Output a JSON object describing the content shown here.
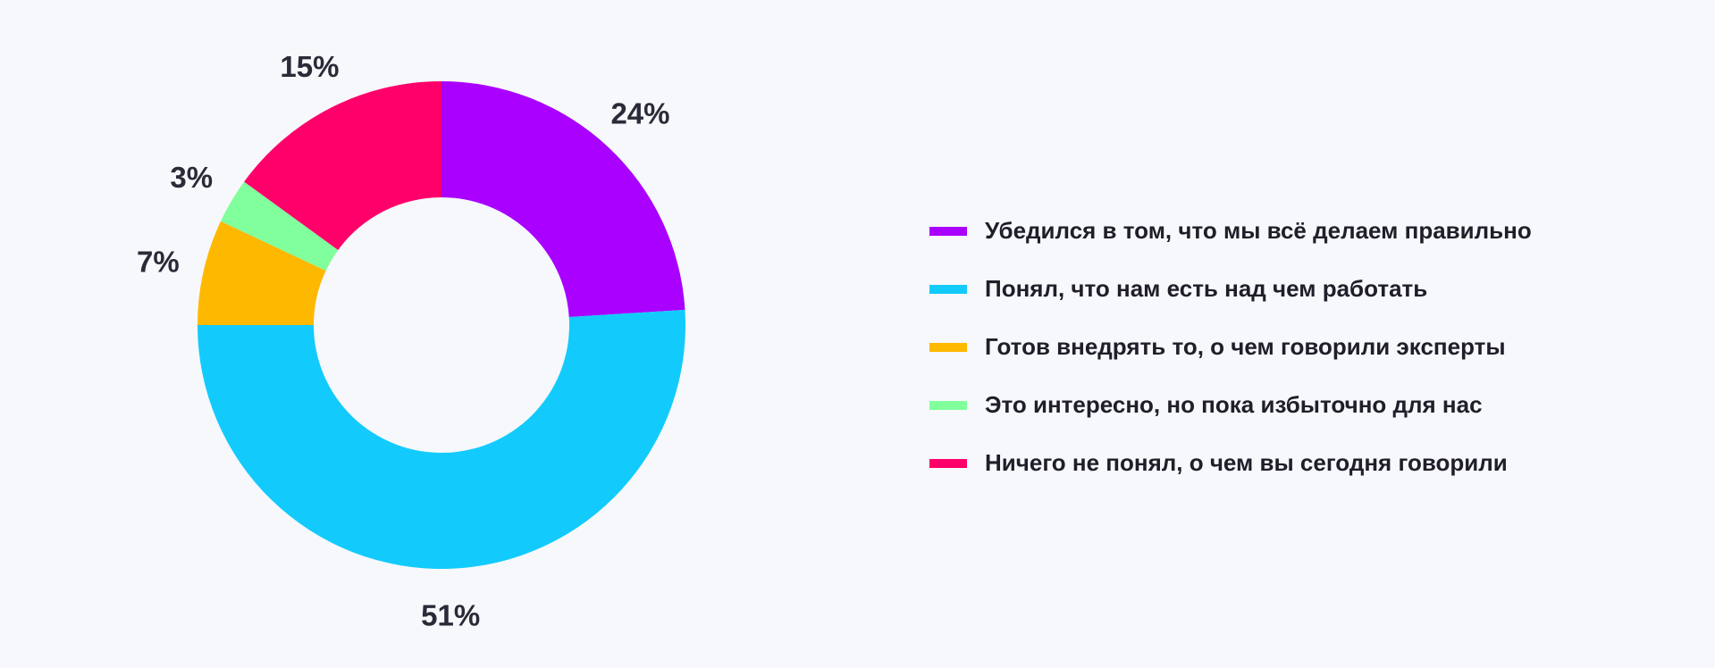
{
  "chart_data": {
    "type": "pie",
    "variant": "donut",
    "title": "",
    "start": "top",
    "direction": "clockwise",
    "slices": [
      {
        "label": "Убедился в том, что мы всё делаем правильно",
        "value": 24,
        "value_label": "24%",
        "color": "#aa00ff"
      },
      {
        "label": "Понял, что нам есть над чем работать",
        "value": 51,
        "value_label": "51%",
        "color": "#12cbfc"
      },
      {
        "label": "Готов внедрять то, о чем говорили эксперты",
        "value": 7,
        "value_label": "7%",
        "color": "#ffb800"
      },
      {
        "label": "Это интересно, но пока избыточно для нас",
        "value": 3,
        "value_label": "3%",
        "color": "#80ff9c"
      },
      {
        "label": "Ничего не понял, о чем вы сегодня говорили",
        "value": 15,
        "value_label": "15%",
        "color": "#ff006b"
      }
    ],
    "legend_position": "right"
  }
}
